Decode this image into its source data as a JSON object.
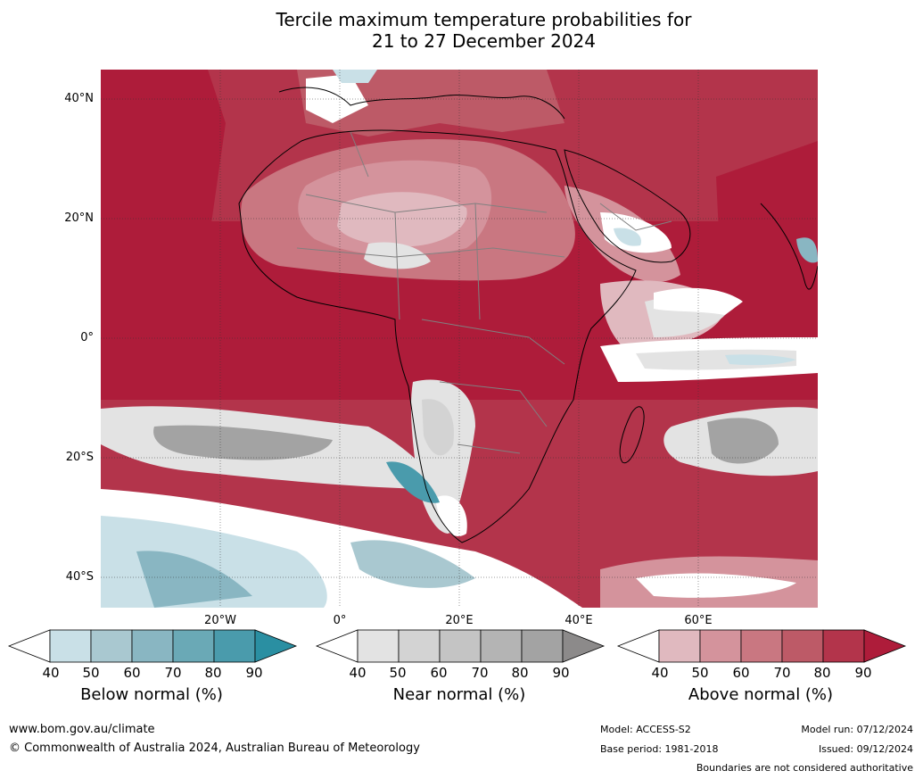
{
  "title": {
    "line1": "Tercile maximum temperature probabilities for",
    "line2": "21 to 27 December 2024"
  },
  "map": {
    "lat_labels": [
      "40°N",
      "20°N",
      "0°",
      "20°S",
      "40°S"
    ],
    "lon_labels": [
      "20°W",
      "0°",
      "20°E",
      "40°E",
      "60°E"
    ],
    "colors": {
      "above": [
        "#e0b9bf",
        "#d4939c",
        "#c97781",
        "#bd5a67",
        "#b3344b",
        "#ae1c3a"
      ],
      "near": [
        "#e3e3e3",
        "#d3d3d3",
        "#c4c4c4",
        "#b4b4b4",
        "#a3a3a3",
        "#8c8a8a"
      ],
      "below": [
        "#c9e0e7",
        "#a9c8d0",
        "#89b6c2",
        "#6aa9b6",
        "#4a9bac",
        "#2a8fa2"
      ]
    }
  },
  "legends": [
    {
      "title": "Below normal (%)",
      "ticks": [
        "40",
        "50",
        "60",
        "70",
        "80",
        "90"
      ],
      "colors": [
        "#ffffff",
        "#c9e0e7",
        "#a9c8d0",
        "#89b6c2",
        "#6aa9b6",
        "#4a9bac",
        "#2a8fa2"
      ]
    },
    {
      "title": "Near normal (%)",
      "ticks": [
        "40",
        "50",
        "60",
        "70",
        "80",
        "90"
      ],
      "colors": [
        "#ffffff",
        "#e3e3e3",
        "#d3d3d3",
        "#c4c4c4",
        "#b4b4b4",
        "#a3a3a3",
        "#8c8a8a"
      ]
    },
    {
      "title": "Above normal (%)",
      "ticks": [
        "40",
        "50",
        "60",
        "70",
        "80",
        "90"
      ],
      "colors": [
        "#ffffff",
        "#e0b9bf",
        "#d4939c",
        "#c97781",
        "#bd5a67",
        "#b3344b",
        "#ae1c3a"
      ]
    }
  ],
  "footer": {
    "url": "www.bom.gov.au/climate",
    "copyright": "© Commonwealth of Australia 2024, Australian Bureau of Meteorology",
    "model": "Model: ACCESS-S2",
    "base_period": "Base period: 1981-2018",
    "model_run": "Model run: 07/12/2024",
    "issued": "Issued: 09/12/2024",
    "disclaimer": "Boundaries are not considered authoritative"
  }
}
